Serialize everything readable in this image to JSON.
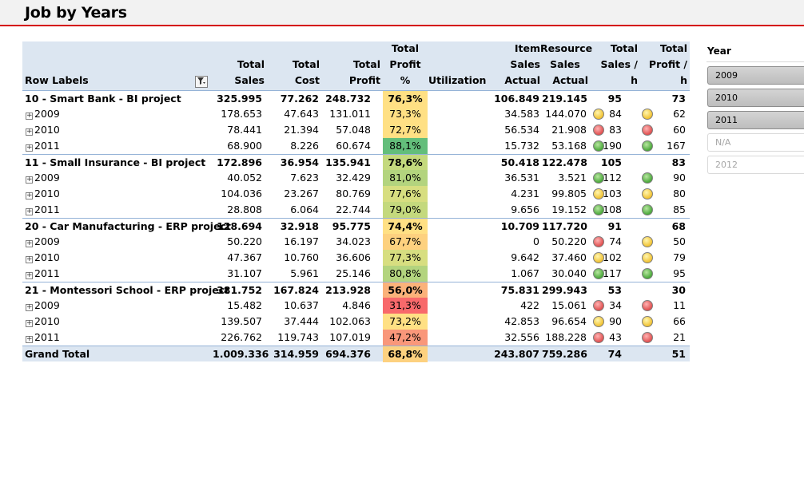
{
  "title": "Job by Years",
  "headers": {
    "row_labels": "Row Labels",
    "total_sales": "Total Sales",
    "total_cost": "Total Cost",
    "total_profit": "Total Profit",
    "profit_pct": [
      "Total",
      "Profit %"
    ],
    "utilization": "Utilization",
    "item_sales": [
      "Item Sales",
      "Actual"
    ],
    "resource_sales": [
      "Resource",
      "Sales",
      "Actual"
    ],
    "sales_per_h": [
      "Total",
      "Sales / h"
    ],
    "profit_per_h": [
      "Total",
      "Profit / h"
    ]
  },
  "rows": [
    {
      "label": "10 - Smart Bank - BI project",
      "group": true,
      "sales": "325.995",
      "cost": "77.262",
      "profit": "248.732",
      "pct": "76,3%",
      "pct_color": "#ffe084",
      "item": "106.849",
      "res": "219.145",
      "sph": "95",
      "pph": "73"
    },
    {
      "label": "2009",
      "sales": "178.653",
      "cost": "47.643",
      "profit": "131.011",
      "pct": "73,3%",
      "pct_color": "#ffe084",
      "item": "34.583",
      "res": "144.070",
      "sph": "84",
      "sph_status": "yellow",
      "pph": "62",
      "pph_status": "yellow"
    },
    {
      "label": "2010",
      "sales": "78.441",
      "cost": "21.394",
      "profit": "57.048",
      "pct": "72,7%",
      "pct_color": "#ffe084",
      "item": "56.534",
      "res": "21.908",
      "sph": "83",
      "sph_status": "red",
      "pph": "60",
      "pph_status": "red"
    },
    {
      "label": "2011",
      "sales": "68.900",
      "cost": "8.226",
      "profit": "60.674",
      "pct": "88,1%",
      "pct_color": "#63be7b",
      "item": "15.732",
      "res": "53.168",
      "sph": "190",
      "sph_status": "green",
      "pph": "167",
      "pph_status": "green"
    },
    {
      "label": "11 - Small Insurance - BI project",
      "group": true,
      "sales": "172.896",
      "cost": "36.954",
      "profit": "135.941",
      "pct": "78,6%",
      "pct_color": "#c4d97d",
      "item": "50.418",
      "res": "122.478",
      "sph": "105",
      "pph": "83"
    },
    {
      "label": "2009",
      "sales": "40.052",
      "cost": "7.623",
      "profit": "32.429",
      "pct": "81,0%",
      "pct_color": "#b3d47e",
      "item": "36.531",
      "res": "3.521",
      "sph": "112",
      "sph_status": "green",
      "pph": "90",
      "pph_status": "green"
    },
    {
      "label": "2010",
      "sales": "104.036",
      "cost": "23.267",
      "profit": "80.769",
      "pct": "77,6%",
      "pct_color": "#d7de80",
      "item": "4.231",
      "res": "99.805",
      "sph": "103",
      "sph_status": "yellow",
      "pph": "80",
      "pph_status": "yellow"
    },
    {
      "label": "2011",
      "sales": "28.808",
      "cost": "6.064",
      "profit": "22.744",
      "pct": "79,0%",
      "pct_color": "#c4d97d",
      "item": "9.656",
      "res": "19.152",
      "sph": "108",
      "sph_status": "green",
      "pph": "85",
      "pph_status": "green"
    },
    {
      "label": "20 - Car Manufacturing - ERP project",
      "group": true,
      "sales": "128.694",
      "cost": "32.918",
      "profit": "95.775",
      "pct": "74,4%",
      "pct_color": "#ffe084",
      "item": "10.709",
      "res": "117.720",
      "sph": "91",
      "pph": "68"
    },
    {
      "label": "2009",
      "sales": "50.220",
      "cost": "16.197",
      "profit": "34.023",
      "pct": "67,7%",
      "pct_color": "#fdd17f",
      "item": "0",
      "res": "50.220",
      "sph": "74",
      "sph_status": "red",
      "pph": "50",
      "pph_status": "yellow"
    },
    {
      "label": "2010",
      "sales": "47.367",
      "cost": "10.760",
      "profit": "36.606",
      "pct": "77,3%",
      "pct_color": "#d7de80",
      "item": "9.642",
      "res": "37.460",
      "sph": "102",
      "sph_status": "yellow",
      "pph": "79",
      "pph_status": "yellow"
    },
    {
      "label": "2011",
      "sales": "31.107",
      "cost": "5.961",
      "profit": "25.146",
      "pct": "80,8%",
      "pct_color": "#b3d47e",
      "item": "1.067",
      "res": "30.040",
      "sph": "117",
      "sph_status": "green",
      "pph": "95",
      "pph_status": "green"
    },
    {
      "label": "21 - Montessori School - ERP project",
      "group": true,
      "sales": "381.752",
      "cost": "167.824",
      "profit": "213.928",
      "pct": "56,0%",
      "pct_color": "#fbb27a",
      "item": "75.831",
      "res": "299.943",
      "sph": "53",
      "pph": "30"
    },
    {
      "label": "2009",
      "sales": "15.482",
      "cost": "10.637",
      "profit": "4.846",
      "pct": "31,3%",
      "pct_color": "#f8696b",
      "item": "422",
      "res": "15.061",
      "sph": "34",
      "sph_status": "red",
      "pph": "11",
      "pph_status": "red"
    },
    {
      "label": "2010",
      "sales": "139.507",
      "cost": "37.444",
      "profit": "102.063",
      "pct": "73,2%",
      "pct_color": "#ffe084",
      "item": "42.853",
      "res": "96.654",
      "sph": "90",
      "sph_status": "yellow",
      "pph": "66",
      "pph_status": "yellow"
    },
    {
      "label": "2011",
      "sales": "226.762",
      "cost": "119.743",
      "profit": "107.019",
      "pct": "47,2%",
      "pct_color": "#f9977a",
      "item": "32.556",
      "res": "188.228",
      "sph": "43",
      "sph_status": "red",
      "pph": "21",
      "pph_status": "red"
    }
  ],
  "grand_total": {
    "label": "Grand Total",
    "sales": "1.009.336",
    "cost": "314.959",
    "profit": "694.376",
    "pct": "68,8%",
    "pct_color": "#fdd17f",
    "item": "243.807",
    "res": "759.286",
    "sph": "74",
    "pph": "51"
  },
  "slicer": {
    "title": "Year",
    "items": [
      {
        "label": "2009",
        "selected": true
      },
      {
        "label": "2010",
        "selected": true
      },
      {
        "label": "2011",
        "selected": true
      },
      {
        "label": "N/A",
        "selected": false
      },
      {
        "label": "2012",
        "selected": false
      }
    ]
  },
  "icons": {
    "filter": "filter-dropdown-icon",
    "expand": "expand-plus-icon"
  }
}
